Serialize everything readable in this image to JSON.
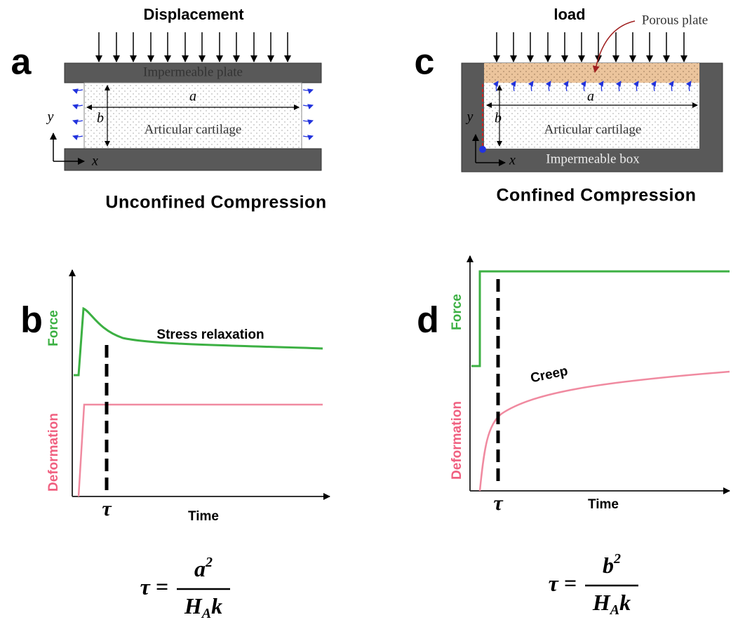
{
  "panel_a": {
    "label": "a",
    "heading": "Displacement",
    "plate": "Impermeable plate",
    "dim_a": "a",
    "dim_b": "b",
    "axis_y": "y",
    "axis_x": "x",
    "tissue": "Articular cartilage",
    "caption": "Unconfined Compression"
  },
  "panel_c": {
    "label": "c",
    "heading": "load",
    "porous": "Porous plate",
    "dim_a": "a",
    "dim_b": "b",
    "axis_y": "y",
    "axis_x": "x",
    "tissue": "Articular cartilage",
    "box": "Impermeable box",
    "caption": "Confined Compression"
  },
  "panel_b": {
    "label": "b",
    "force": "Force",
    "deformation": "Deformation",
    "annotation": "Stress relaxation",
    "tau": "τ",
    "time": "Time",
    "formula": {
      "lhs": "τ =",
      "num": "a",
      "num_exp": "2",
      "den": "H",
      "den_sub": "A",
      "den_tail": "k"
    }
  },
  "panel_d": {
    "label": "d",
    "force": "Force",
    "deformation": "Deformation",
    "annotation": "Creep",
    "tau": "τ",
    "time": "Time",
    "formula": {
      "lhs": "τ =",
      "num": "b",
      "num_exp": "2",
      "den": "H",
      "den_sub": "A",
      "den_tail": "k"
    }
  }
}
